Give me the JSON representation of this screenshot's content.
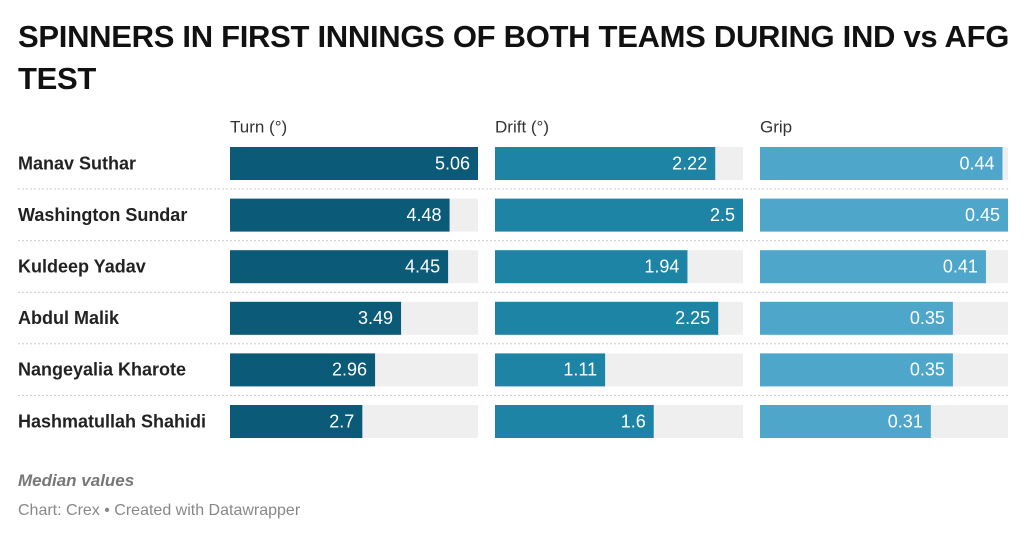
{
  "chart_data": {
    "type": "bar",
    "title": "SPINNERS IN FIRST INNINGS OF BOTH TEAMS DURING IND vs AFG TEST",
    "categories": [
      "Manav Suthar",
      "Washington Sundar",
      "Kuldeep Yadav",
      "Abdul Malik",
      "Nangeyalia Kharote",
      "Hashmatullah Shahidi"
    ],
    "series": [
      {
        "name": "Turn (°)",
        "color": "#0b5a78",
        "values": [
          5.06,
          4.48,
          4.45,
          3.49,
          2.96,
          2.7
        ],
        "xlim": [
          0,
          5.06
        ]
      },
      {
        "name": "Drift (°)",
        "color": "#1e84a5",
        "values": [
          2.22,
          2.5,
          1.94,
          2.25,
          1.11,
          1.6
        ],
        "xlim": [
          0,
          2.5
        ]
      },
      {
        "name": "Grip",
        "color": "#4ea6cb",
        "values": [
          0.44,
          0.45,
          0.41,
          0.35,
          0.35,
          0.31
        ],
        "xlim": [
          0,
          0.45
        ]
      }
    ],
    "note": "Median values",
    "source": "Chart: Crex • Created with Datawrapper"
  }
}
